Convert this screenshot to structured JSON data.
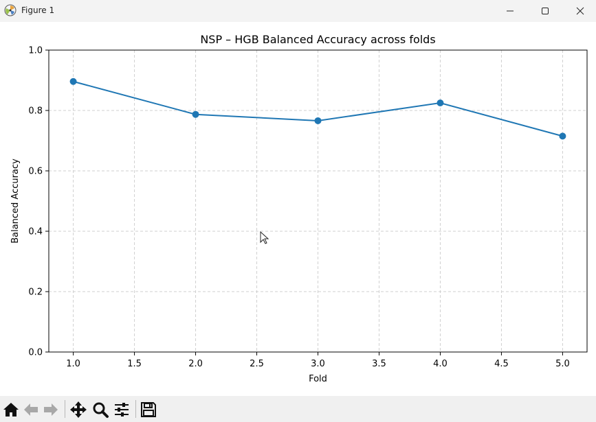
{
  "window": {
    "title": "Figure 1"
  },
  "toolbar": {
    "buttons": [
      {
        "name": "home-icon",
        "tooltip": "Home"
      },
      {
        "name": "back-arrow-icon",
        "tooltip": "Back"
      },
      {
        "name": "forward-arrow-icon",
        "tooltip": "Forward"
      },
      {
        "name": "pan-icon",
        "tooltip": "Pan"
      },
      {
        "name": "zoom-icon",
        "tooltip": "Zoom"
      },
      {
        "name": "configure-subplots-icon",
        "tooltip": "Configure subplots"
      },
      {
        "name": "save-icon",
        "tooltip": "Save"
      }
    ]
  },
  "chart_data": {
    "type": "line",
    "title": "NSP – HGB Balanced Accuracy across folds",
    "xlabel": "Fold",
    "ylabel": "Balanced Accuracy",
    "x": [
      1,
      2,
      3,
      4,
      5
    ],
    "series": [
      {
        "values": [
          0.896,
          0.787,
          0.766,
          0.825,
          0.715
        ],
        "color": "#1f77b4",
        "marker": "circle"
      }
    ],
    "xlim": [
      0.8,
      5.2
    ],
    "ylim": [
      0.0,
      1.0
    ],
    "xticks": [
      "1.0",
      "1.5",
      "2.0",
      "2.5",
      "3.0",
      "3.5",
      "4.0",
      "4.5",
      "5.0"
    ],
    "yticks": [
      "0.0",
      "0.2",
      "0.4",
      "0.6",
      "0.8",
      "1.0"
    ],
    "grid": true,
    "grid_style": "dashed"
  }
}
